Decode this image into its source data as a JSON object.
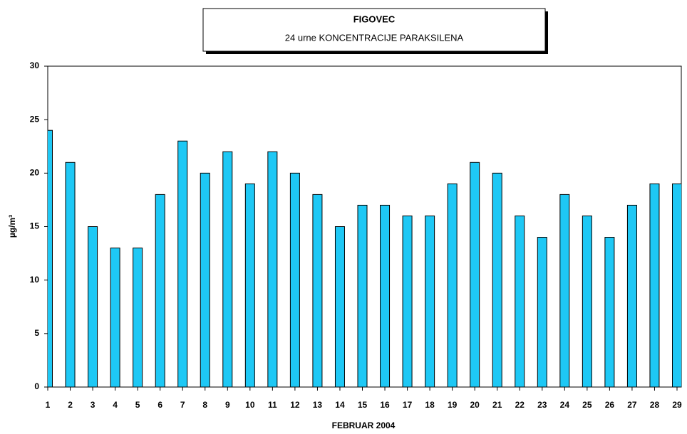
{
  "chart_data": {
    "type": "bar",
    "title": "FIGOVEC",
    "subtitle": "24 urne KONCENTRACIJE PARAKSILENA",
    "x_label": "FEBRUAR 2004",
    "y_label": "µg/m³",
    "categories": [
      "1",
      "2",
      "3",
      "4",
      "5",
      "6",
      "7",
      "8",
      "9",
      "10",
      "11",
      "12",
      "13",
      "14",
      "15",
      "16",
      "17",
      "18",
      "19",
      "20",
      "21",
      "22",
      "23",
      "24",
      "25",
      "26",
      "27",
      "28",
      "29"
    ],
    "values": [
      24,
      21,
      15,
      13,
      13,
      18,
      23,
      20,
      22,
      19,
      22,
      20,
      18,
      15,
      17,
      17,
      16,
      16,
      19,
      21,
      20,
      16,
      14,
      18,
      16,
      14,
      17,
      19,
      19
    ],
    "color": "#1ec8f5",
    "ylim": [
      0,
      30
    ],
    "yticks": [
      0,
      5,
      10,
      15,
      20,
      25,
      30
    ],
    "grid": false
  }
}
